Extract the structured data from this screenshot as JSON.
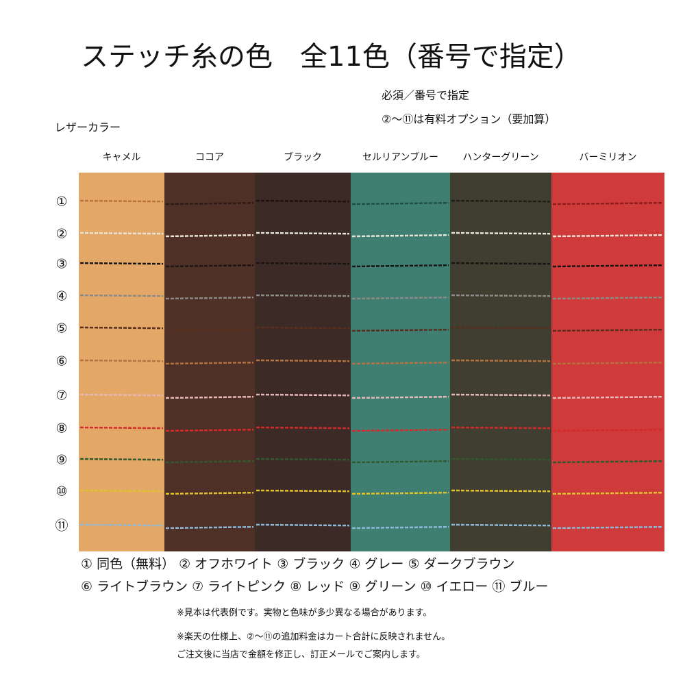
{
  "title": "ステッチ糸の色　全11色（番号で指定）",
  "notes": [
    "必須／番号で指定",
    "②〜⑪は有料オプション（要加算）"
  ],
  "leather_label": "レザーカラー",
  "leathers": [
    {
      "name": "キャメル",
      "color": "#e3a767",
      "stitch": "#b8733a"
    },
    {
      "name": "ココア",
      "color": "#4f3026",
      "stitch": "#2e1a14"
    },
    {
      "name": "ブラック",
      "color": "#3b2a26",
      "stitch": "#1c1210"
    },
    {
      "name": "セルリアンブルー",
      "color": "#3e7f72",
      "stitch": "#1f4d44"
    },
    {
      "name": "ハンターグリーン",
      "color": "#3f3e30",
      "stitch": "#1e1e15"
    },
    {
      "name": "バーミリオン",
      "color": "#cf3a3a",
      "stitch": "#8c1d1d"
    }
  ],
  "rows": [
    "①",
    "②",
    "③",
    "④",
    "⑤",
    "⑥",
    "⑦",
    "⑧",
    "⑨",
    "⑩",
    "⑪"
  ],
  "stitch_colors": [
    "#e8e4d8",
    "#1a1412",
    "#8c8a86",
    "#5a2e1c",
    "#b5723f",
    "#e6b8b8",
    "#d62a2a",
    "#2f5a2e",
    "#e2c22a",
    "#8fb9d8"
  ],
  "legend": [
    "① 同色（無料） ② オフホワイト ③ ブラック ④ グレー ⑤ ダークブラウン",
    "⑥ ライトブラウン ⑦ ライトピンク ⑧ レッド ⑨ グリーン ⑩ イエロー ⑪ ブルー"
  ],
  "footnotes": [
    "※見本は代表例です。実物と色味が多少異なる場合があります。",
    "※楽天の仕様上、②〜⑪の追加料金はカート合計に反映されません。",
    "ご注文後に当店で金額を修正し、訂正メールでご案内します。"
  ]
}
